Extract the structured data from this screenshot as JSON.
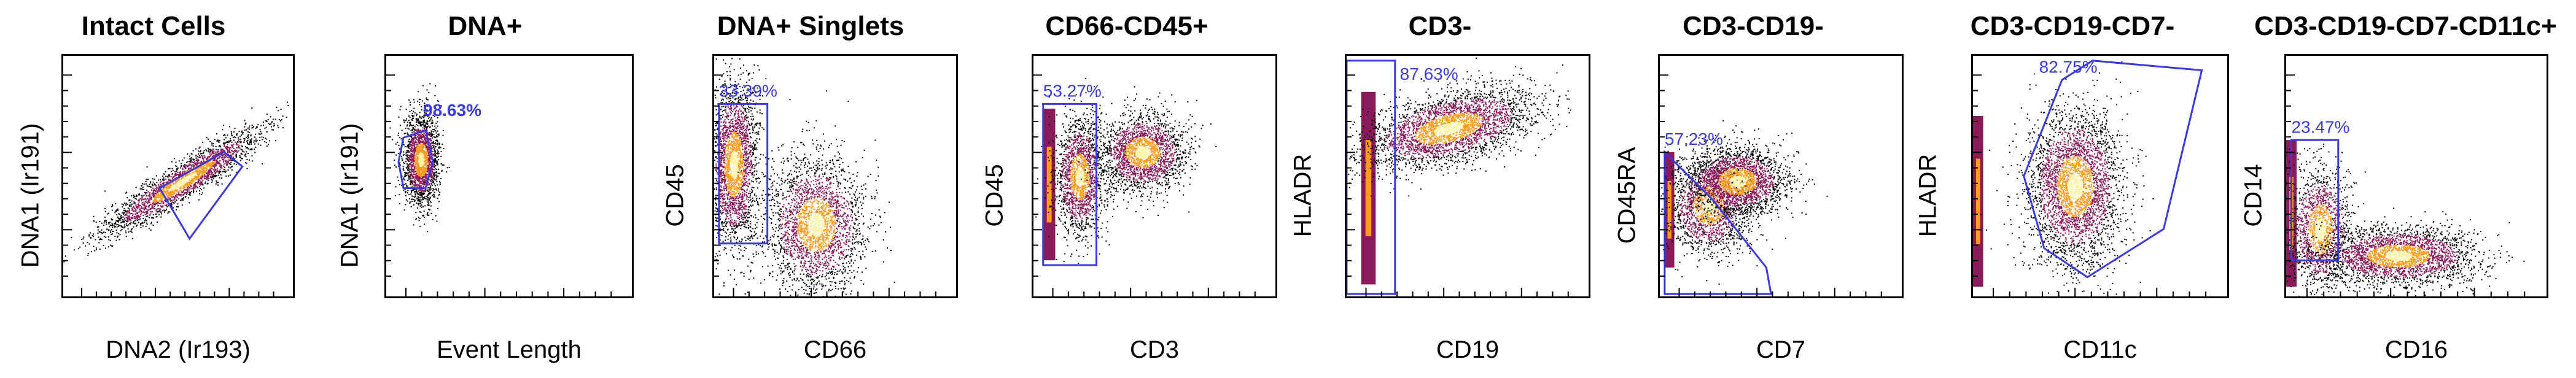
{
  "colors": {
    "gate": "#3a3ae0",
    "density_low": "#000000",
    "density_mid": "#8a1a5a",
    "density_high": "#ff9a1a",
    "density_peak": "#fff2a0"
  },
  "chart_data": [
    {
      "type": "scatter",
      "title": "Intact Cells",
      "xlabel": "DNA2 (Ir193)",
      "ylabel": "DNA1 (Ir191)",
      "gate": {
        "shape": "polygon",
        "label": ""
      }
    },
    {
      "type": "scatter",
      "title": "DNA+",
      "xlabel": "Event Length",
      "ylabel": "DNA1 (Ir191)",
      "gate": {
        "shape": "polygon",
        "label": "98.63%"
      }
    },
    {
      "type": "scatter",
      "title": "DNA+ Singlets",
      "xlabel": "CD66",
      "ylabel": "CD45",
      "gate": {
        "shape": "rectangle",
        "label": "33.39%"
      }
    },
    {
      "type": "scatter",
      "title": "CD66-CD45+",
      "xlabel": "CD3",
      "ylabel": "CD45",
      "gate": {
        "shape": "rectangle",
        "label": "53.27%"
      }
    },
    {
      "type": "scatter",
      "title": "CD3-",
      "xlabel": "CD19",
      "ylabel": "HLADR",
      "gate": {
        "shape": "rectangle",
        "label": "87.63%"
      }
    },
    {
      "type": "scatter",
      "title": "CD3-CD19-",
      "xlabel": "CD7",
      "ylabel": "CD45RA",
      "gate": {
        "shape": "polygon",
        "label": "57.23%"
      }
    },
    {
      "type": "scatter",
      "title": "CD3-CD19-CD7-",
      "xlabel": "CD11c",
      "ylabel": "HLADR",
      "gate": {
        "shape": "polygon",
        "label": "82.75%"
      }
    },
    {
      "type": "scatter",
      "title": "CD3-CD19-CD7-CD11c+",
      "xlabel": "CD16",
      "ylabel": "CD14",
      "gate": {
        "shape": "rectangle",
        "label": "23.47%"
      }
    }
  ]
}
